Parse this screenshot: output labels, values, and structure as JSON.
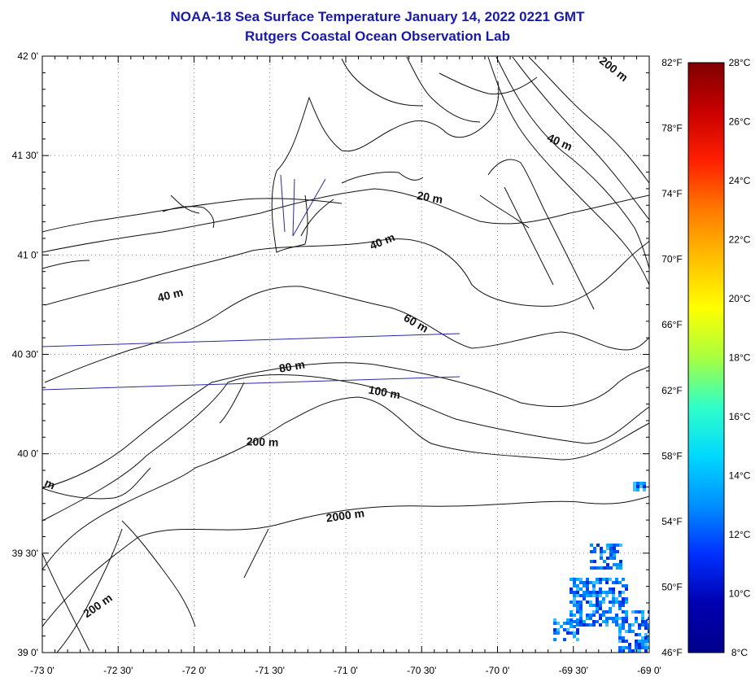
{
  "title": "NOAA-18 Sea Surface Temperature January 14, 2022 0221 GMT",
  "subtitle": "Rutgers Coastal Ocean Observation Lab",
  "map": {
    "lat_labels": [
      "42 0'",
      "41 30'",
      "41 0'",
      "40 30'",
      "40 0'",
      "39 30'",
      "39 0'"
    ],
    "lon_labels": [
      "-73 0'",
      "-72 30'",
      "-72 0'",
      "-71 30'",
      "-71 0'",
      "-70 30'",
      "-70 0'",
      "-69 30'",
      "-69 0'"
    ],
    "lat_range": [
      39.0,
      42.0
    ],
    "lon_range": [
      -73.0,
      -69.0
    ],
    "grid": true,
    "contour_labels": [
      {
        "text": "200 m",
        "lon": -69.25,
        "lat": 41.92
      },
      {
        "text": "40 m",
        "lon": -69.6,
        "lat": 41.55
      },
      {
        "text": "20 m",
        "lon": -70.45,
        "lat": 41.27
      },
      {
        "text": "40 m",
        "lon": -70.75,
        "lat": 41.05
      },
      {
        "text": "40 m",
        "lon": -72.15,
        "lat": 40.78
      },
      {
        "text": "60 m",
        "lon": -70.55,
        "lat": 40.64
      },
      {
        "text": "80 m",
        "lon": -71.35,
        "lat": 40.42
      },
      {
        "text": "100 m",
        "lon": -70.75,
        "lat": 40.29
      },
      {
        "text": "200 m",
        "lon": -71.55,
        "lat": 40.04
      },
      {
        "text": "2000 m",
        "lon": -71.0,
        "lat": 39.67
      },
      {
        "text": "m",
        "lon": -72.96,
        "lat": 39.83
      },
      {
        "text": "200 m",
        "lon": -72.62,
        "lat": 39.22
      }
    ]
  },
  "colorbar": {
    "f_labels": [
      "82°F",
      "78°F",
      "74°F",
      "70°F",
      "66°F",
      "62°F",
      "58°F",
      "54°F",
      "50°F",
      "46°F"
    ],
    "c_labels": [
      "28°C",
      "26°C",
      "24°C",
      "22°C",
      "20°C",
      "18°C",
      "16°C",
      "14°C",
      "12°C",
      "10°C",
      "8°C"
    ],
    "colors": [
      "#800000",
      "#c80000",
      "#ff2000",
      "#ff7a00",
      "#ffc000",
      "#ffff00",
      "#a8ff40",
      "#30ffc8",
      "#00d8ff",
      "#0090ff",
      "#0030ff",
      "#0000b0",
      "#00008c"
    ]
  }
}
